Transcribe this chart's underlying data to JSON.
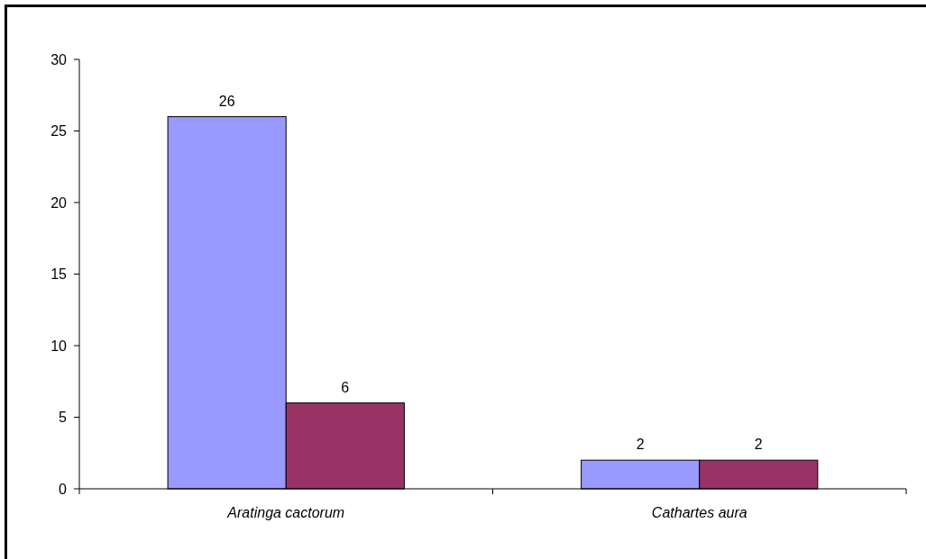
{
  "chart_data": {
    "type": "bar",
    "categories": [
      "Aratinga cactorum",
      "Cathartes aura"
    ],
    "series": [
      {
        "color": "#9999ff",
        "values": [
          26,
          2
        ]
      },
      {
        "color": "#993366",
        "values": [
          6,
          2
        ]
      }
    ],
    "ylim": [
      0,
      30
    ],
    "yticks": [
      0,
      5,
      10,
      15,
      20,
      25,
      30
    ],
    "data_labels": true
  }
}
